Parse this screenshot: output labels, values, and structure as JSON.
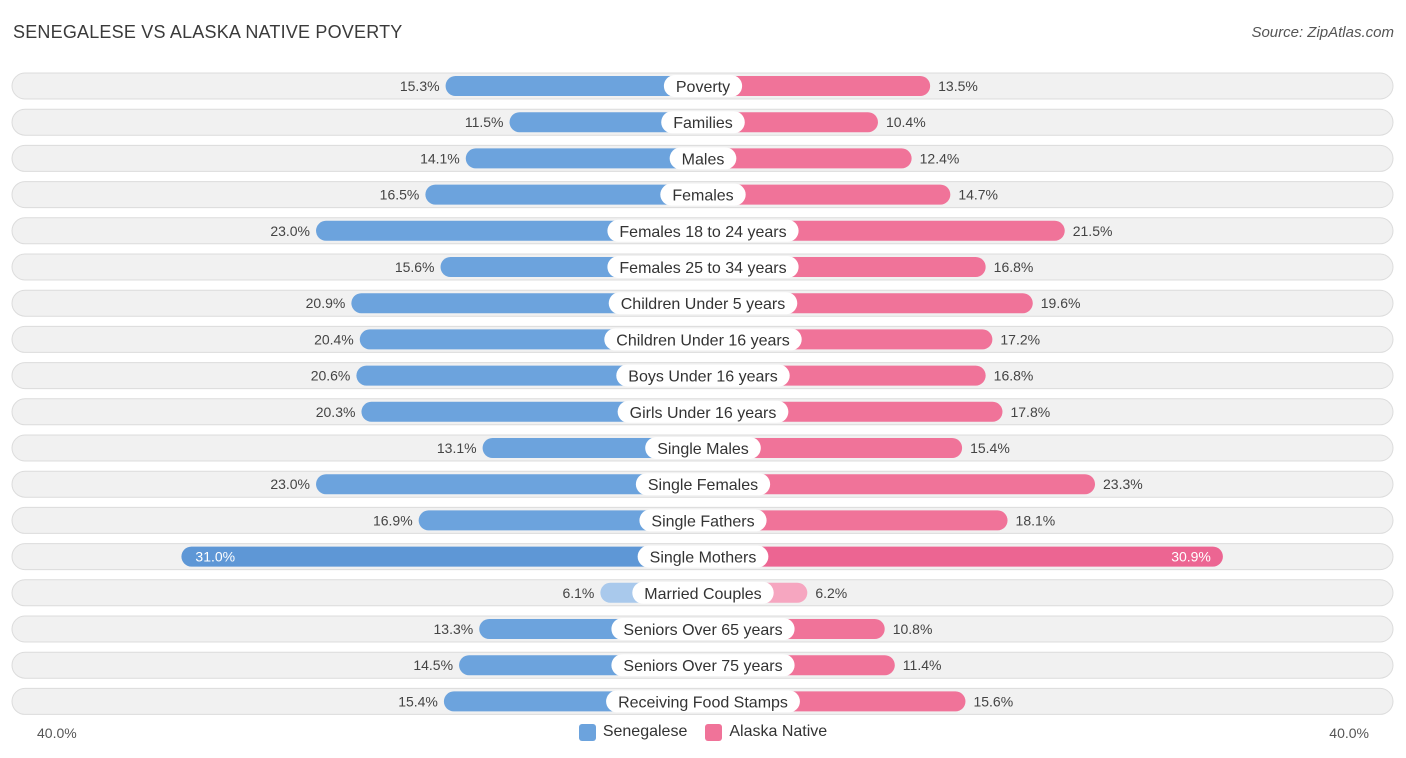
{
  "title": "SENEGALESE VS ALASKA NATIVE POVERTY",
  "source": "Source: ZipAtlas.com",
  "axis": {
    "left_label": "40.0%",
    "right_label": "40.0%"
  },
  "colors": {
    "senegalese": "#6ca3dd",
    "senegalese_light": "#a9c9ec",
    "alaska_native": "#f07399",
    "alaska_native_light": "#f6a6c0"
  },
  "legend": [
    {
      "label": "Senegalese",
      "color": "#6ca3dd"
    },
    {
      "label": "Alaska Native",
      "color": "#f07399"
    }
  ],
  "chart_data": {
    "type": "bar",
    "orientation": "horizontal-diverging",
    "title": "SENEGALESE VS ALASKA NATIVE POVERTY",
    "xlim": [
      -40,
      40
    ],
    "unit": "%",
    "categories": [
      "Poverty",
      "Families",
      "Males",
      "Females",
      "Females 18 to 24 years",
      "Females 25 to 34 years",
      "Children Under 5 years",
      "Children Under 16 years",
      "Boys Under 16 years",
      "Girls Under 16 years",
      "Single Males",
      "Single Females",
      "Single Fathers",
      "Single Mothers",
      "Married Couples",
      "Seniors Over 65 years",
      "Seniors Over 75 years",
      "Receiving Food Stamps"
    ],
    "series": [
      {
        "name": "Senegalese",
        "values": [
          15.3,
          11.5,
          14.1,
          16.5,
          23.0,
          15.6,
          20.9,
          20.4,
          20.6,
          20.3,
          13.1,
          23.0,
          16.9,
          31.0,
          6.1,
          13.3,
          14.5,
          15.4
        ],
        "labels": [
          "15.3%",
          "11.5%",
          "14.1%",
          "16.5%",
          "23.0%",
          "15.6%",
          "20.9%",
          "20.4%",
          "20.6%",
          "20.3%",
          "13.1%",
          "23.0%",
          "16.9%",
          "31.0%",
          "6.1%",
          "13.3%",
          "14.5%",
          "15.4%"
        ]
      },
      {
        "name": "Alaska Native",
        "values": [
          13.5,
          10.4,
          12.4,
          14.7,
          21.5,
          16.8,
          19.6,
          17.2,
          16.8,
          17.8,
          15.4,
          23.3,
          18.1,
          30.9,
          6.2,
          10.8,
          11.4,
          15.6
        ],
        "labels": [
          "13.5%",
          "10.4%",
          "12.4%",
          "14.7%",
          "21.5%",
          "16.8%",
          "19.6%",
          "17.2%",
          "16.8%",
          "17.8%",
          "15.4%",
          "23.3%",
          "18.1%",
          "30.9%",
          "6.2%",
          "10.8%",
          "11.4%",
          "15.6%"
        ]
      }
    ]
  }
}
